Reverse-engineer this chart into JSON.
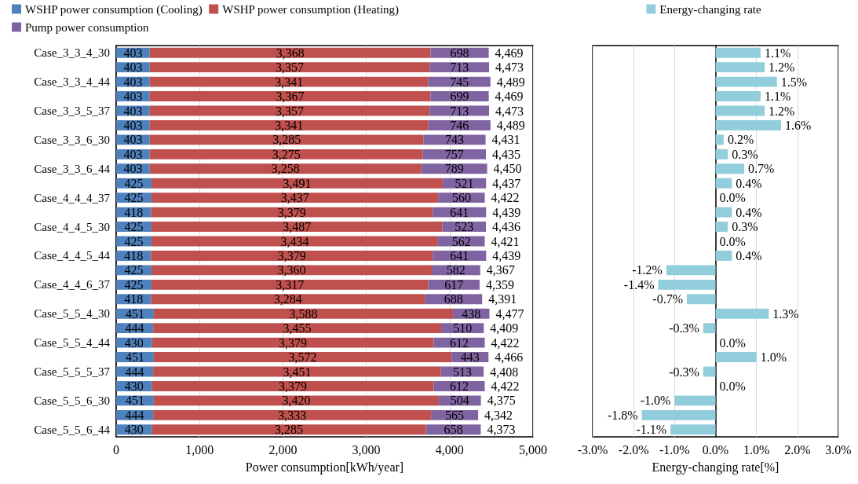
{
  "chart_data": [
    {
      "type": "bar",
      "orientation": "horizontal",
      "stacked": true,
      "xlabel": "Power consumption[kWh/year]",
      "categories": [
        "Case_3_3_4_30",
        null,
        "Case_3_3_4_44",
        null,
        "Case_3_3_5_37",
        null,
        "Case_3_3_6_30",
        null,
        "Case_3_3_6_44",
        null,
        "Case_4_4_4_37",
        null,
        "Case_4_4_5_30",
        null,
        "Case_4_4_5_44",
        null,
        "Case_4_4_6_37",
        null,
        "Case_5_5_4_30",
        null,
        "Case_5_5_4_44",
        null,
        "Case_5_5_5_37",
        null,
        "Case_5_5_6_30",
        null,
        "Case_5_5_6_44"
      ],
      "series": [
        {
          "name": "WSHP power consumption (Cooling)",
          "color": "#4f81bd",
          "values": [
            403,
            403,
            403,
            403,
            403,
            403,
            403,
            403,
            403,
            425,
            425,
            418,
            425,
            425,
            418,
            425,
            425,
            418,
            451,
            444,
            430,
            451,
            444,
            430,
            451,
            444,
            430
          ]
        },
        {
          "name": "WSHP power consumption (Heating)",
          "color": "#c0504d",
          "values": [
            3368,
            3357,
            3341,
            3367,
            3357,
            3341,
            3285,
            3275,
            3258,
            3491,
            3437,
            3379,
            3487,
            3434,
            3379,
            3360,
            3317,
            3284,
            3588,
            3455,
            3379,
            3572,
            3451,
            3379,
            3420,
            3333,
            3285
          ],
          "value_labels": [
            "3,368",
            "3,357",
            "3,341",
            "3,367",
            "3,357",
            "3,341",
            "3,285",
            "3,275",
            "3,258",
            "3,491",
            "3,437",
            "3,379",
            "3,487",
            "3,434",
            "3,379",
            "3,360",
            "3,317",
            "3,284",
            "3,588",
            "3,455",
            "3,379",
            "3,572",
            "3,451",
            "3,379",
            "3,420",
            "3,333",
            "3,285"
          ]
        },
        {
          "name": "Pump power consumption",
          "color": "#8064a2",
          "values": [
            698,
            713,
            745,
            699,
            713,
            746,
            743,
            757,
            789,
            521,
            560,
            641,
            523,
            562,
            641,
            582,
            617,
            688,
            438,
            510,
            612,
            443,
            513,
            612,
            504,
            565,
            658
          ]
        }
      ],
      "totals": [
        "4,469",
        "4,473",
        "4,489",
        "4,469",
        "4,473",
        "4,489",
        "4,431",
        "4,435",
        "4,450",
        "4,437",
        "4,422",
        "4,439",
        "4,436",
        "4,421",
        "4,439",
        "4,367",
        "4,359",
        "4,391",
        "4,477",
        "4,409",
        "4,422",
        "4,466",
        "4,408",
        "4,422",
        "4,375",
        "4,342",
        "4,373"
      ],
      "data_labels": true,
      "xlim": [
        0,
        5000
      ],
      "xticks": [
        0,
        {
          "value": 1000,
          "label": "1,000"
        },
        {
          "value": 2000,
          "label": "2,000"
        },
        {
          "value": 3000,
          "label": "3,000"
        },
        {
          "value": 4000,
          "label": "4,000"
        },
        {
          "value": 5000,
          "label": "5,000"
        }
      ],
      "grid": "x",
      "legend": "top"
    },
    {
      "type": "bar",
      "orientation": "horizontal",
      "xlabel": "Energy-changing rate[%]",
      "categories": [
        null,
        null,
        null,
        null,
        null,
        null,
        null,
        null,
        null,
        null,
        null,
        null,
        null,
        null,
        null,
        null,
        null,
        null,
        null,
        null,
        null,
        null,
        null,
        null,
        null,
        null,
        null
      ],
      "tick_labels": "x",
      "series": [
        {
          "name": "Energy-changing rate",
          "color": "#92cddc",
          "values": [
            1.1,
            1.2,
            1.5,
            1.1,
            1.2,
            1.6,
            0.2,
            0.3,
            0.7,
            0.4,
            0.0,
            0.4,
            0.3,
            0.0,
            0.4,
            -1.2,
            -1.4,
            -0.7,
            1.3,
            -0.3,
            0.0,
            1.0,
            -0.3,
            0.0,
            -1.0,
            -1.8,
            -1.1
          ],
          "value_labels": [
            "1.1%",
            "1.2%",
            "1.5%",
            "1.1%",
            "1.2%",
            "1.6%",
            "0.2%",
            "0.3%",
            "0.7%",
            "0.4%",
            "0.0%",
            "0.4%",
            "0.3%",
            "0.0%",
            "0.4%",
            "-1.2%",
            "-1.4%",
            "-0.7%",
            "1.3%",
            "-0.3%",
            "0.0%",
            "1.0%",
            "-0.3%",
            "0.0%",
            "-1.0%",
            "-1.8%",
            "-1.1%"
          ]
        }
      ],
      "xlim": [
        -3,
        3
      ],
      "xticks": [
        {
          "value": -3,
          "label": "-3.0%"
        },
        {
          "value": -2,
          "label": "-2.0%"
        },
        {
          "value": -1,
          "label": "-1.0%"
        },
        {
          "value": 0,
          "label": "0.0%"
        },
        {
          "value": 1,
          "label": "1.0%"
        },
        {
          "value": 2,
          "label": "2.0%"
        },
        {
          "value": 3,
          "label": "3.0%"
        }
      ],
      "grid": "x",
      "legend": "top"
    }
  ]
}
